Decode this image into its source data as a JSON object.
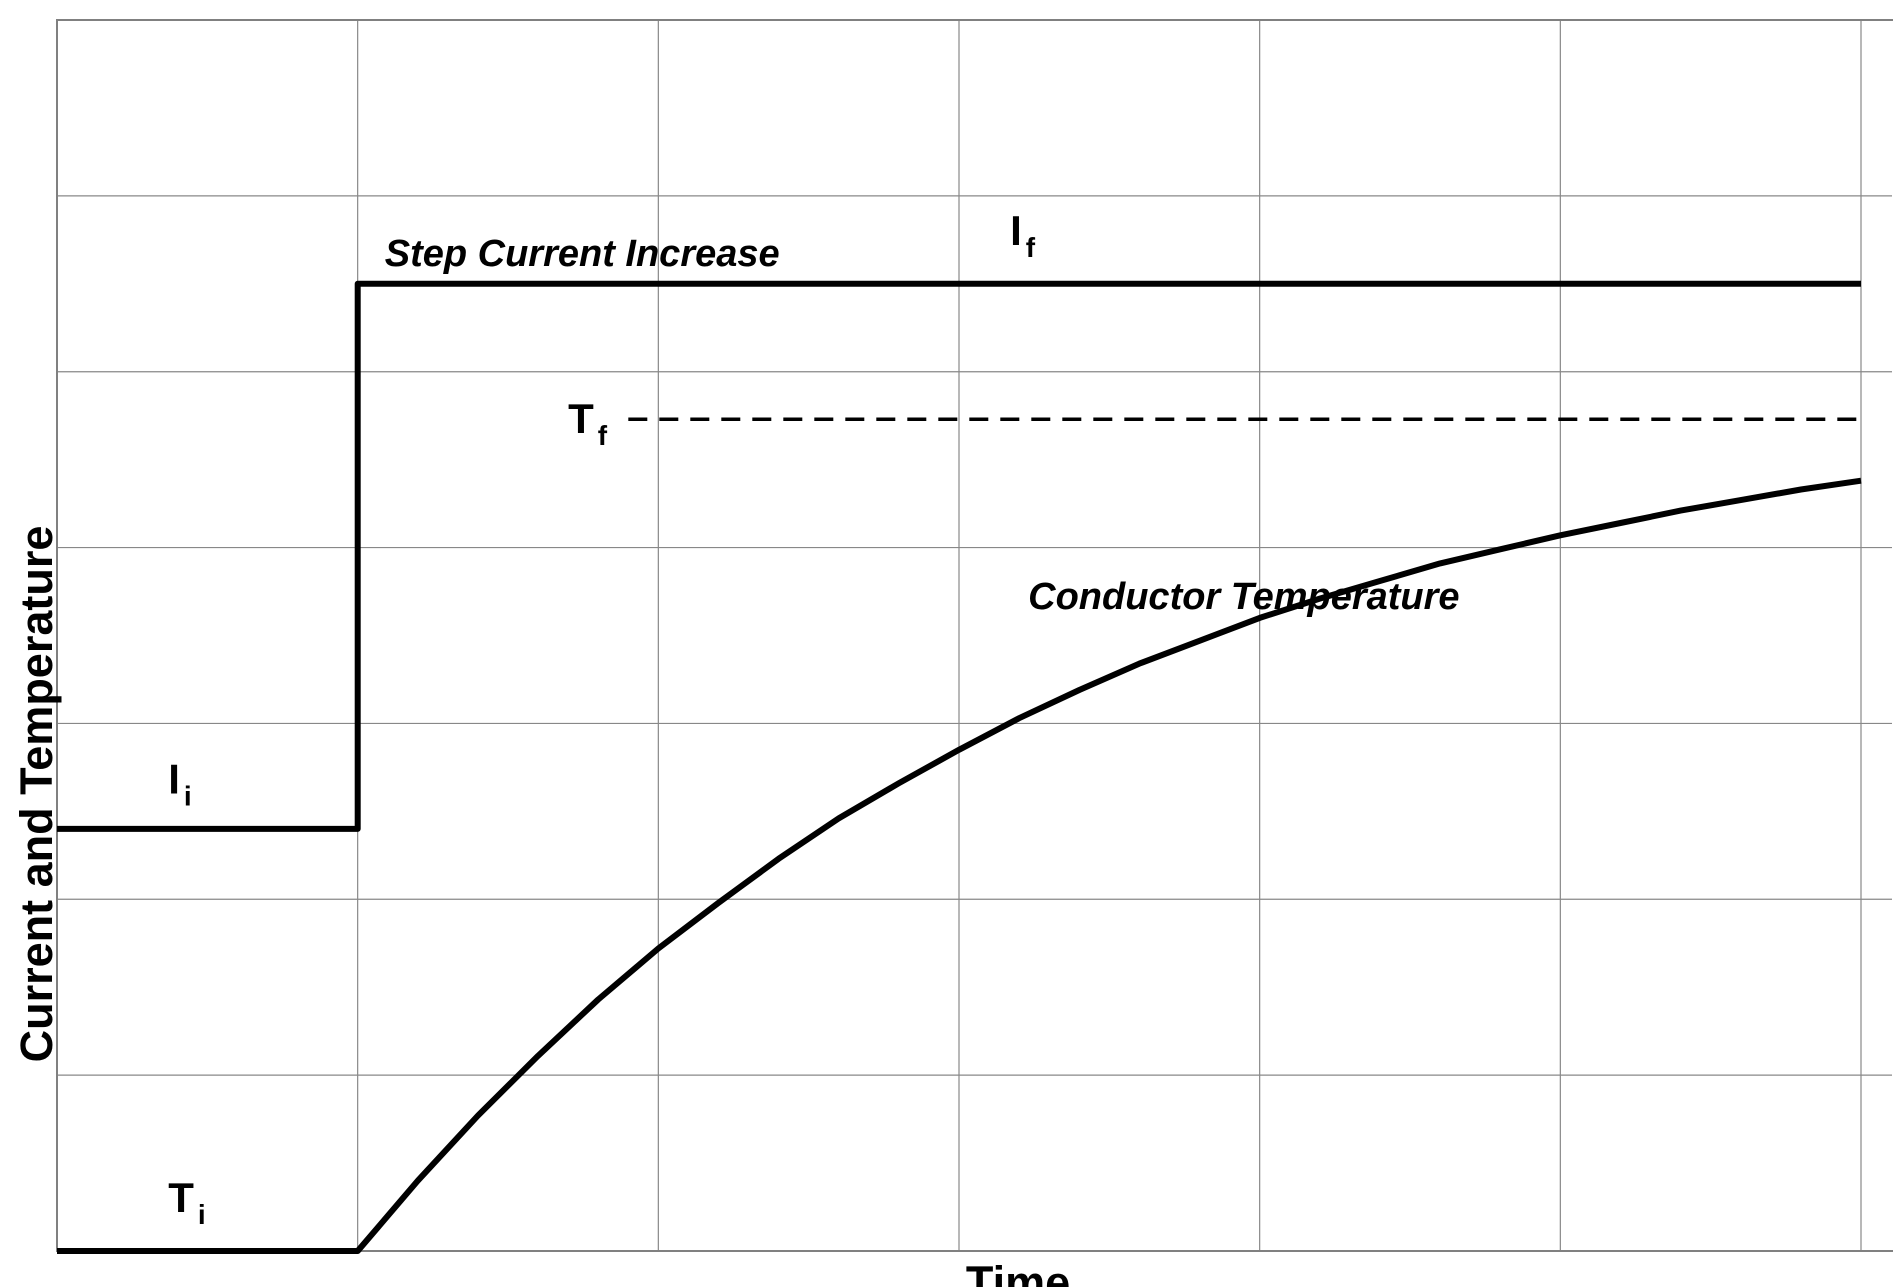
{
  "chart_data": {
    "type": "line",
    "title": "",
    "xlabel": "Time",
    "ylabel": "Current and Temperature",
    "grid": true,
    "legend": "none",
    "xlim": [
      0,
      6
    ],
    "ylim": [
      0,
      7
    ],
    "series": [
      {
        "name": "Step Current Increase",
        "points": [
          [
            0,
            2.4
          ],
          [
            1,
            2.4
          ],
          [
            1,
            5.5
          ],
          [
            6,
            5.5
          ]
        ]
      },
      {
        "name": "Conductor Temperature",
        "points": [
          [
            0,
            0.0
          ],
          [
            1,
            0.0
          ],
          [
            1.2,
            0.4
          ],
          [
            1.4,
            0.77
          ],
          [
            1.6,
            1.11
          ],
          [
            1.8,
            1.43
          ],
          [
            2.0,
            1.72
          ],
          [
            2.2,
            1.98
          ],
          [
            2.4,
            2.23
          ],
          [
            2.6,
            2.46
          ],
          [
            2.8,
            2.66
          ],
          [
            3.0,
            2.85
          ],
          [
            3.2,
            3.03
          ],
          [
            3.4,
            3.19
          ],
          [
            3.6,
            3.34
          ],
          [
            3.8,
            3.47
          ],
          [
            4.0,
            3.6
          ],
          [
            4.2,
            3.71
          ],
          [
            4.4,
            3.81
          ],
          [
            4.6,
            3.91
          ],
          [
            4.8,
            3.99
          ],
          [
            5.0,
            4.07
          ],
          [
            5.2,
            4.14
          ],
          [
            5.4,
            4.21
          ],
          [
            5.6,
            4.27
          ],
          [
            5.8,
            4.33
          ],
          [
            6.0,
            4.38
          ]
        ]
      },
      {
        "name": "Tf",
        "style": "dashed",
        "points": [
          [
            1.9,
            4.73
          ],
          [
            6,
            4.73
          ]
        ]
      }
    ],
    "annotations": [
      {
        "text": "Step Current Increase",
        "style": "italic-bold",
        "x": 1.09,
        "y": 5.6
      },
      {
        "text": "Conductor Temperature",
        "style": "italic-bold",
        "x": 3.23,
        "y": 3.65
      },
      {
        "main": "I",
        "sub": "f",
        "x": 3.17,
        "y": 5.8
      },
      {
        "main": "I",
        "sub": "i",
        "x": 0.37,
        "y": 2.68
      },
      {
        "main": "T",
        "sub": "f",
        "x": 1.7,
        "y": 4.73
      },
      {
        "main": "T",
        "sub": "i",
        "x": 0.37,
        "y": 0.3
      }
    ]
  },
  "colors": {
    "line": "#000000",
    "grid": "#888888",
    "axis": "#808080",
    "background": "#ffffff"
  }
}
